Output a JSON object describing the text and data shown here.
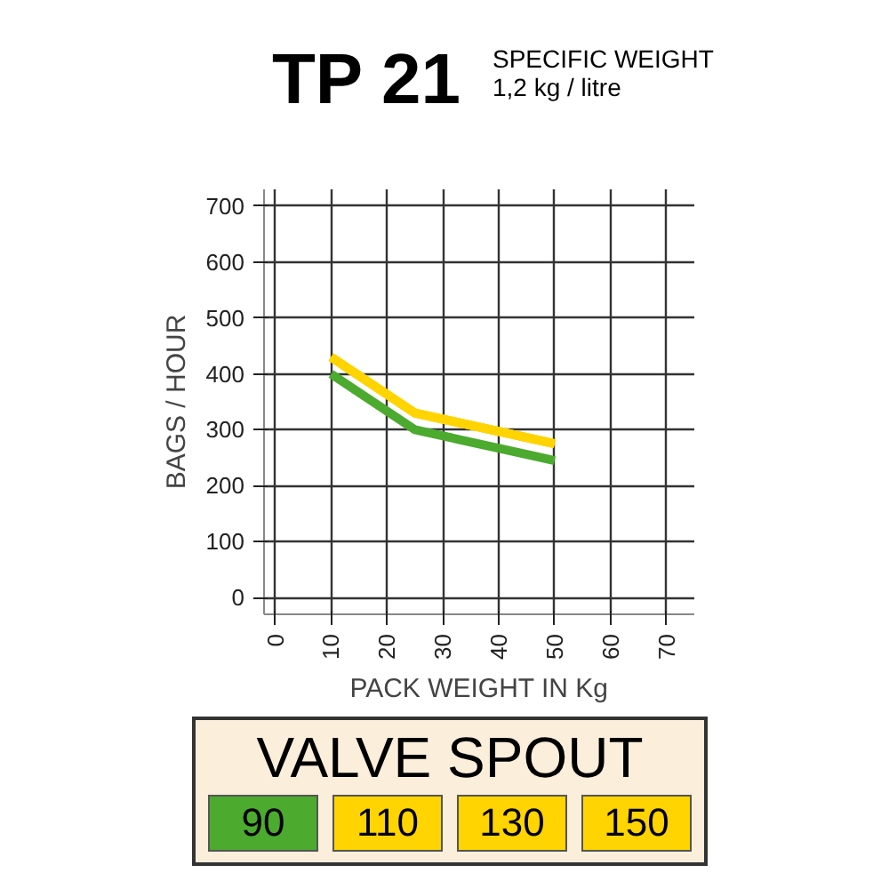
{
  "chart_data": {
    "type": "line",
    "title": "TP 21",
    "subtitle": "SPECIFIC WEIGHT\n1,2 kg / litre",
    "xlabel": "PACK WEIGHT IN Kg",
    "ylabel": "BAGS / HOUR",
    "legend_title": "VALVE SPOUT",
    "legend": "bottom",
    "grid": true,
    "xlim": [
      -2,
      75
    ],
    "xticks": [
      0,
      10,
      20,
      30,
      40,
      50,
      60,
      70
    ],
    "ylim": [
      -30,
      730
    ],
    "yticks": [
      0,
      100,
      200,
      300,
      400,
      500,
      600,
      700
    ],
    "series": [
      {
        "name": "90",
        "color": "#4caa2e",
        "x": [
          10,
          25,
          50
        ],
        "values": [
          400,
          300,
          245
        ]
      },
      {
        "name": "110",
        "color": "#ffd400",
        "x": [
          10,
          25,
          50
        ],
        "values": [
          430,
          330,
          275
        ]
      },
      {
        "name": "130",
        "color": "#ffd400",
        "x": [
          10,
          25,
          50
        ],
        "values": [
          430,
          330,
          275
        ]
      },
      {
        "name": "150",
        "color": "#ffd400",
        "x": [
          10,
          25,
          50
        ],
        "values": [
          430,
          330,
          275
        ]
      }
    ]
  }
}
